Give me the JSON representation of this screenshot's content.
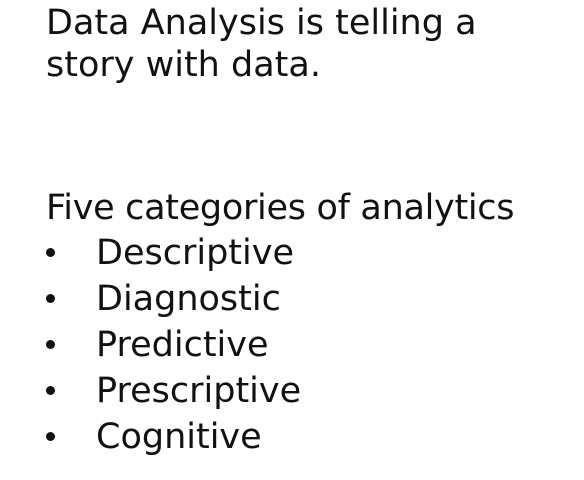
{
  "headline": {
    "line1": "Data Analysis is telling a",
    "line2": "story with data."
  },
  "section": {
    "title": "Five categories of analytics",
    "items": [
      {
        "label": "Descriptive"
      },
      {
        "label": "Diagnostic"
      },
      {
        "label": "Predictive"
      },
      {
        "label": "Prescriptive"
      },
      {
        "label": "Cognitive"
      }
    ]
  }
}
